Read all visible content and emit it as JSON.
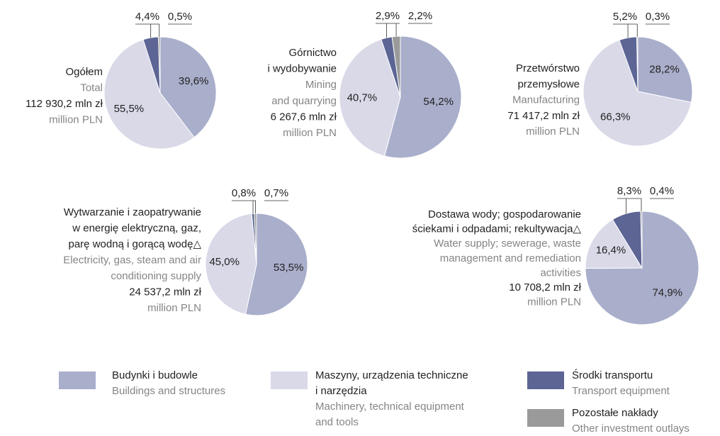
{
  "chart_data": [
    {
      "type": "pie",
      "title": [
        "Ogółem"
      ],
      "subtitle": [
        "Total"
      ],
      "total": "112 930,2 mln zł",
      "unit": "million PLN",
      "values": [
        39.6,
        55.5,
        4.4,
        0.5
      ],
      "value_labels": [
        "39,6%",
        "55,5%",
        "4,4%",
        "0,5%"
      ]
    },
    {
      "type": "pie",
      "title": [
        "Górnictwo",
        "i wydobywanie"
      ],
      "subtitle": [
        "Mining",
        "and quarrying"
      ],
      "total": "6 267,6 mln zł",
      "unit": "million PLN",
      "values": [
        54.2,
        40.7,
        2.9,
        2.2
      ],
      "value_labels": [
        "54,2%",
        "40,7%",
        "2,9%",
        "2,2%"
      ]
    },
    {
      "type": "pie",
      "title": [
        "Przetwórstwo",
        "przemysłowe"
      ],
      "subtitle": [
        "Manufacturing"
      ],
      "total": "71 417,2 mln zł",
      "unit": "million PLN",
      "values": [
        28.2,
        66.3,
        5.2,
        0.3
      ],
      "value_labels": [
        "28,2%",
        "66,3%",
        "5,2%",
        "0,3%"
      ]
    },
    {
      "type": "pie",
      "title": [
        "Wytwarzanie i zaopatrywanie",
        "w energię elektryczną, gaz,",
        "parę wodną i gorącą wodę△"
      ],
      "subtitle": [
        "Electricity, gas, steam and air",
        "conditioning supply"
      ],
      "total": "24 537,2 mln zł",
      "unit": "million PLN",
      "values": [
        53.5,
        45.0,
        0.8,
        0.7
      ],
      "value_labels": [
        "53,5%",
        "45,0%",
        "0,8%",
        "0,7%"
      ]
    },
    {
      "type": "pie",
      "title": [
        "Dostawa wody; gospodarowanie",
        "ściekami i odpadami; rekultywacja△"
      ],
      "subtitle": [
        "Water supply; sewerage, waste",
        "management and remediation",
        "activities"
      ],
      "total": "10 708,2 mln zł",
      "unit": "million PLN",
      "values": [
        74.9,
        16.4,
        8.3,
        0.4
      ],
      "value_labels": [
        "74,9%",
        "16,4%",
        "8,3%",
        "0,4%"
      ]
    }
  ],
  "legend": [
    {
      "name": [
        "Budynki i budowle"
      ],
      "name_en": [
        "Buildings and structures"
      ],
      "color": "#a9aecb"
    },
    {
      "name": [
        "Maszyny, urządzenia techniczne",
        "i narzędzia"
      ],
      "name_en": [
        "Machinery, technical equipment",
        "and tools"
      ],
      "color": "#d9d9e8"
    },
    {
      "name": [
        "Środki transportu"
      ],
      "name_en": [
        "Transport equipment"
      ],
      "color": "#5c6594"
    },
    {
      "name": [
        "Pozostałe nakłady"
      ],
      "name_en": [
        "Other investment outlays"
      ],
      "color": "#9a9a9a"
    }
  ]
}
